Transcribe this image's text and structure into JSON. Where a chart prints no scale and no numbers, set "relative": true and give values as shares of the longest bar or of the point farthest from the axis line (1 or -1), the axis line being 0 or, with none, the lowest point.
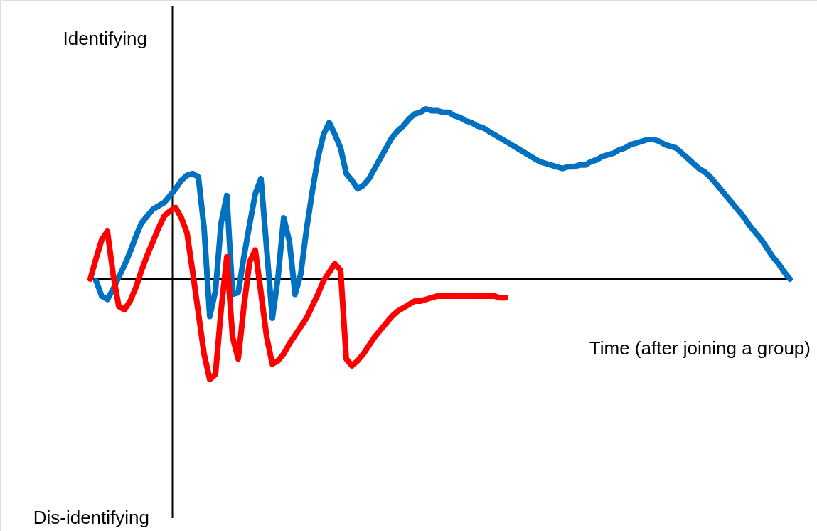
{
  "chart_data": {
    "type": "line",
    "relative": true,
    "ylabel": "Identifying",
    "xlabel": "Time (after joining a group)",
    "annotations": [
      "Dis-identifying"
    ],
    "categories": [
      null,
      null,
      null,
      null,
      null,
      null,
      null,
      null,
      null,
      null,
      null,
      null,
      null,
      null,
      null,
      null,
      null,
      null,
      null,
      null,
      null,
      null,
      null,
      null,
      null,
      null,
      null,
      null,
      null,
      null,
      null,
      null,
      null,
      null,
      null,
      null,
      null,
      null,
      null,
      null,
      null,
      null,
      null,
      null,
      null,
      null,
      null,
      null,
      null,
      null,
      null,
      null,
      null,
      null,
      null,
      null,
      null,
      null,
      null,
      null,
      null,
      null,
      null,
      null,
      null,
      null,
      null,
      null,
      null,
      null,
      null,
      null,
      null,
      null,
      null,
      null,
      null,
      null,
      null,
      null,
      null,
      null,
      null,
      null,
      null,
      null,
      null,
      null,
      null,
      null,
      null,
      null,
      null,
      null,
      null,
      null,
      null,
      null,
      null,
      null,
      null,
      null,
      null,
      null,
      null,
      null,
      null,
      null,
      null,
      null,
      null,
      null,
      null,
      null,
      null,
      null,
      null,
      null,
      null,
      null,
      null,
      null,
      null,
      null
    ],
    "series": [
      {
        "color": "#0070c0",
        "values": [
          null,
          -0.01,
          -0.1,
          -0.12,
          -0.06,
          0.01,
          0.08,
          0.16,
          0.25,
          0.33,
          0.37,
          0.41,
          0.43,
          0.45,
          0.49,
          0.53,
          0.58,
          0.61,
          0.62,
          0.6,
          0.3,
          -0.22,
          -0.07,
          0.33,
          0.49,
          -0.09,
          -0.08,
          0.13,
          0.32,
          0.5,
          0.59,
          0.18,
          -0.23,
          0.01,
          0.36,
          0.22,
          -0.09,
          0.03,
          0.29,
          0.51,
          0.71,
          0.85,
          0.92,
          0.85,
          0.77,
          0.62,
          0.58,
          0.53,
          0.55,
          0.59,
          0.65,
          0.71,
          0.77,
          0.83,
          0.87,
          0.9,
          0.94,
          0.97,
          0.98,
          1.0,
          0.99,
          0.99,
          0.98,
          0.98,
          0.96,
          0.95,
          0.93,
          0.92,
          0.9,
          0.89,
          0.87,
          0.85,
          0.83,
          0.81,
          0.79,
          0.77,
          0.75,
          0.73,
          0.71,
          0.69,
          0.68,
          0.67,
          0.66,
          0.65,
          0.66,
          0.66,
          0.67,
          0.67,
          0.69,
          0.7,
          0.72,
          0.73,
          0.74,
          0.76,
          0.77,
          0.79,
          0.8,
          0.81,
          0.82,
          0.82,
          0.81,
          0.79,
          0.78,
          0.77,
          0.74,
          0.71,
          0.68,
          0.65,
          0.63,
          0.6,
          0.56,
          0.52,
          0.48,
          0.44,
          0.4,
          0.36,
          0.31,
          0.27,
          0.23,
          0.18,
          0.13,
          0.09,
          0.04,
          0
        ]
      },
      {
        "color": "#ff0000",
        "values": [
          0,
          0.12,
          0.23,
          0.28,
          0.03,
          -0.16,
          -0.18,
          -0.13,
          -0.05,
          0.05,
          0.14,
          0.22,
          0.3,
          0.37,
          0.4,
          0.42,
          0.36,
          0.27,
          0.04,
          -0.2,
          -0.44,
          -0.59,
          -0.56,
          -0.18,
          0.13,
          -0.34,
          -0.47,
          -0.16,
          0.1,
          0.17,
          -0.08,
          -0.34,
          -0.5,
          -0.48,
          -0.44,
          -0.38,
          -0.33,
          -0.28,
          -0.23,
          -0.16,
          -0.09,
          -0.01,
          0.04,
          0.09,
          0.05,
          -0.47,
          -0.51,
          -0.48,
          -0.44,
          -0.39,
          -0.34,
          -0.3,
          -0.26,
          -0.22,
          -0.19,
          -0.17,
          -0.15,
          -0.13,
          -0.13,
          -0.12,
          -0.11,
          -0.1,
          -0.1,
          -0.1,
          -0.1,
          -0.1,
          -0.1,
          -0.1,
          -0.1,
          -0.1,
          -0.1,
          -0.1,
          -0.11,
          -0.11,
          null,
          null,
          null,
          null,
          null,
          null,
          null,
          null,
          null,
          null,
          null,
          null,
          null,
          null,
          null,
          null,
          null,
          null,
          null,
          null,
          null,
          null,
          null,
          null,
          null,
          null,
          null,
          null,
          null,
          null,
          null,
          null,
          null,
          null,
          null,
          null,
          null,
          null,
          null,
          null,
          null,
          null,
          null,
          null,
          null,
          null,
          null,
          null,
          null,
          null
        ]
      }
    ]
  }
}
